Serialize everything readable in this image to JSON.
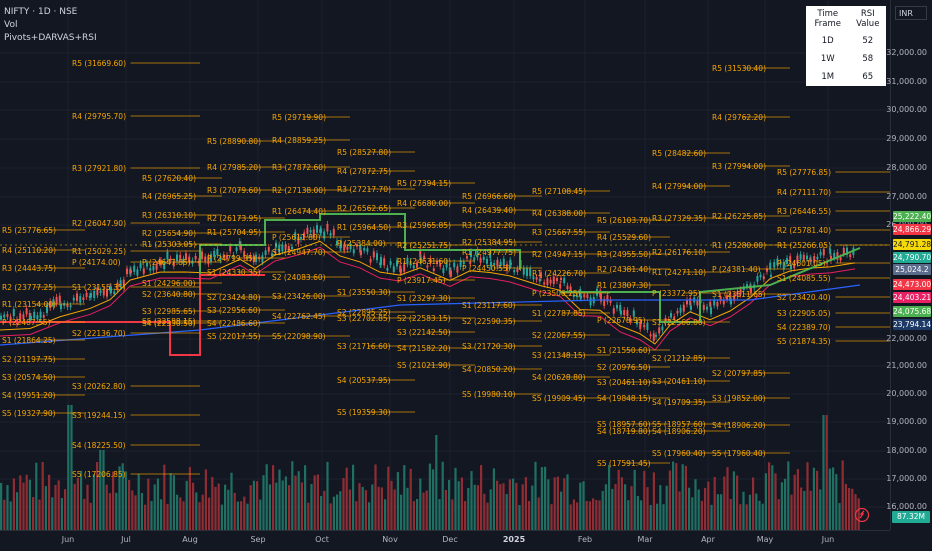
{
  "legend": {
    "symbol_line": "NIFTY · 1D · NSE",
    "vol_line": "Vol",
    "indicator_line": "Pivots+DARVAS+RSI"
  },
  "currency": "INR",
  "rsi_table": {
    "headers": [
      "Time Frame",
      "RSI Value"
    ],
    "rows": [
      {
        "tf": "1D",
        "value": "52"
      },
      {
        "tf": "1W",
        "value": "58"
      },
      {
        "tf": "1M",
        "value": "65"
      }
    ]
  },
  "price_scale": {
    "ticks": [
      "32,000.00",
      "31,000.00",
      "30,000.00",
      "29,000.00",
      "28,000.00",
      "27,000.00",
      "26,000.00",
      "22,000.00",
      "21,000.00",
      "20,000.00",
      "19,000.00",
      "18,000.00",
      "17,000.00",
      "16,000.00"
    ],
    "badges": [
      {
        "text": "25,222.40",
        "color": "#4caf50"
      },
      {
        "text": "24,866.29",
        "color": "#f23645"
      },
      {
        "text": "24,791.28",
        "color": "#f5d90a"
      },
      {
        "text": "24,790.70",
        "color": "#22ab94"
      },
      {
        "text": "25,024.2",
        "color": "#5b6b8c"
      },
      {
        "text": "24,473.00",
        "color": "#f23645"
      },
      {
        "text": "24,403.21",
        "color": "#e91e63"
      },
      {
        "text": "24,075.68",
        "color": "#4caf50"
      },
      {
        "text": "23,794.14",
        "color": "#1e3a66"
      }
    ]
  },
  "volume_badge": "87.32M",
  "time_axis": [
    "Jun",
    "Jul",
    "Aug",
    "Sep",
    "Oct",
    "Nov",
    "Dec",
    "2025",
    "Feb",
    "Mar",
    "Apr",
    "May",
    "Jun"
  ],
  "pivot_colors": {
    "label": "#f7a600",
    "line": "#f7a600"
  },
  "pivot_periods": [
    {
      "labels": [
        "R5 (25776.65)",
        "R4 (25110.20)",
        "R3 (24443.75)",
        "R2 (23777.25)",
        "R1 (23154.00)",
        "P (22487.55)",
        "S1 (21864.25)",
        "S2 (21197.75)",
        "S3 (20574.50)",
        "S4 (19951.20)",
        "S5 (19327.90)"
      ]
    },
    {
      "labels": [
        "R5 (31669.60)",
        "R4 (29795.70)",
        "R3 (27921.80)",
        "R2 (26047.90)",
        "R1 (25029.25)",
        "P (24174.00)",
        "S1 (23155.35)",
        "S2 (22136.70)",
        "S3 (20262.80)",
        "S3 (19244.15)",
        "S4 (18225.50)",
        "S5 (17206.85)"
      ]
    },
    {
      "labels": [
        "R5 (27620.40)",
        "R4 (26965.25)",
        "R3 (26310.10)",
        "R2 (25654.90)",
        "R1 (25303.05)",
        "P (24647.85)",
        "S1 (24296.00)",
        "S2 (23640.80)",
        "S3 (22985.65)",
        "S4 (22330.50)",
        "S5 (22588.15)"
      ]
    },
    {
      "labels": [
        "R5 (28890.80)",
        "R4 (27985.20)",
        "R3 (27079.60)",
        "R2 (26173.95)",
        "R1 (25704.95)",
        "P (24799.35)",
        "S1 (24330.35)",
        "S2 (23424.80)",
        "S3 (22956.60)",
        "S4 (22486.60)",
        "S5 (22017.55)"
      ]
    },
    {
      "labels": [
        "R5 (29719.90)",
        "R4 (28859.25)",
        "R3 (27872.60)",
        "R2 (27138.00)",
        "R1 (26474.40)",
        "P (25611.80)",
        "S1 (24947.70)",
        "S2 (24083.60)",
        "S3 (23426.00)",
        "S4 (22762.45)",
        "S5 (22098.90)"
      ]
    },
    {
      "labels": [
        "R5 (28527.80)",
        "R4 (27872.75)",
        "R3 (27217.70)",
        "R2 (26562.65)",
        "R1 (25964.50)",
        "P (25384.00)",
        "S1 (23550.30)",
        "S2 (22895.25)",
        "S3 (22702.85)",
        "S3 (21716.60)",
        "S4 (20537.95)",
        "S5 (19359.30)"
      ]
    },
    {
      "labels": [
        "R5 (27394.15)",
        "R4 (26680.00)",
        "R3 (25965.85)",
        "R2 (25251.75)",
        "R1 (24631.60)",
        "P (23917.45)",
        "S1 (23297.30)",
        "S2 (22583.15)",
        "S3 (22142.50)",
        "S4 (21582.20)",
        "S5 (21021.90)"
      ]
    },
    {
      "labels": [
        "R5 (26966.60)",
        "R4 (26439.40)",
        "R3 (25912.20)",
        "R2 (25384.95)",
        "R1 (24977.75)",
        "P (24450.55)",
        "S1 (23117.60)",
        "S2 (22590.35)",
        "S3 (21720.30)",
        "S4 (20850.20)",
        "S5 (19980.10)"
      ]
    },
    {
      "labels": [
        "R5 (27108.45)",
        "R4 (26388.00)",
        "R3 (25667.55)",
        "R2 (24947.15)",
        "R1 (24226.70)",
        "P (23506.25)",
        "S1 (22787.85)",
        "S2 (22067.55)",
        "S3 (21348.15)",
        "S4 (20628.80)",
        "S5 (19909.45)"
      ]
    },
    {
      "labels": [
        "R5 (26103.70)",
        "R4 (25529.60)",
        "R3 (24955.50)",
        "R2 (24381.40)",
        "R1 (23807.30)",
        "P (22678.95)",
        "S1 (21550.60)",
        "S2 (20976.50)",
        "S3 (20461.10)",
        "S4 (19848.15)",
        "S5 (18957.60)",
        "S4 (18719.80)",
        "S5 (17591.45)"
      ]
    },
    {
      "labels": [
        "R5 (28482.60)",
        "R4 (27994.00)",
        "R3 (27329.35)",
        "R2 (26176.10)",
        "R1 (24271.10)",
        "P (23372.95)",
        "S1 (22566.00)",
        "S2 (21212.85)",
        "S3 (20461.10)",
        "S4 (19709.35)",
        "S5 (18957.60)",
        "S4 (18906.20)",
        "S5 (17960.40)"
      ]
    },
    {
      "labels": [
        "R5 (31530.40)",
        "R4 (29762.20)",
        "R3 (27994.00)",
        "R2 (26225.85)",
        "R1 (25280.00)",
        "P (24381.40)",
        "S1 (23511.65)",
        "S2 (20797.85)",
        "S3 (19852.00)",
        "S4 (18906.20)",
        "S5 (17960.40)"
      ]
    },
    {
      "labels": [
        "R5 (27776.85)",
        "R4 (27111.70)",
        "R3 (26446.55)",
        "R2 (25781.40)",
        "R1 (25266.05)",
        "P (24601.05)",
        "S1 (24085.55)",
        "S2 (23420.40)",
        "S3 (22905.05)",
        "S4 (22389.70)",
        "S5 (21874.35)"
      ]
    }
  ]
}
